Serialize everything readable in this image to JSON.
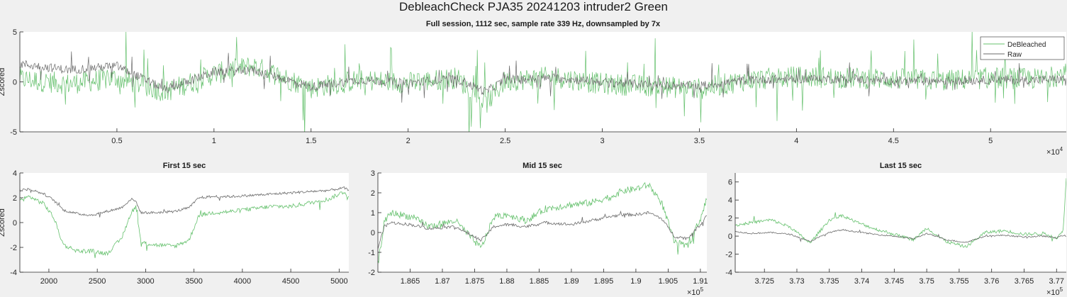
{
  "figure_title": "DebleachCheck PJA35 20241203  intruder2 Green",
  "colors": {
    "debleached": "#66c16e",
    "raw": "#6b6b6b",
    "axes_bg": "#ffffff",
    "figure_bg": "#f0f0f0"
  },
  "chart_data": [
    {
      "type": "line",
      "title": "Full session, 1112 sec, sample rate 339 Hz, downsampled by 7x",
      "ylabel": "Zscored",
      "xlabel": "",
      "xlim": [
        0,
        53900
      ],
      "ylim": [
        -5,
        5
      ],
      "x_ticks": [
        5000,
        10000,
        15000,
        20000,
        25000,
        30000,
        35000,
        40000,
        45000,
        50000
      ],
      "x_tick_labels": [
        "0.5",
        "1",
        "1.5",
        "2",
        "2.5",
        "3",
        "3.5",
        "4",
        "4.5",
        "5"
      ],
      "x_exponent": "×10",
      "x_exponent_power": "4",
      "y_ticks": [
        -5,
        0,
        5
      ],
      "y_tick_labels": [
        "-5",
        "0",
        "5"
      ],
      "grid": false,
      "legend": {
        "placement": "top-right",
        "entries": [
          "DeBleached",
          "Raw"
        ]
      },
      "series": [
        {
          "name": "DeBleached",
          "x": [
            0,
            2500,
            5000,
            7500,
            10000,
            12000,
            15000,
            17500,
            20000,
            22500,
            24000,
            25000,
            27500,
            30000,
            32500,
            35000,
            37500,
            40000,
            42500,
            45000,
            47500,
            50000,
            52500,
            53900
          ],
          "values": [
            0.3,
            -0.2,
            0.4,
            -1.0,
            0.8,
            1.6,
            -0.6,
            0.2,
            -0.1,
            0.4,
            -2.2,
            0.1,
            0.5,
            -0.2,
            -0.4,
            -0.7,
            0.2,
            0.5,
            0.4,
            0.3,
            0.1,
            0.4,
            0.3,
            0.8
          ]
        },
        {
          "name": "Raw",
          "x": [
            0,
            2500,
            5000,
            7500,
            10000,
            12000,
            15000,
            17500,
            20000,
            22500,
            24000,
            25000,
            27500,
            30000,
            32500,
            35000,
            37500,
            40000,
            42500,
            45000,
            47500,
            50000,
            52500,
            53900
          ],
          "values": [
            1.8,
            1.2,
            1.6,
            -0.8,
            1.0,
            1.2,
            -0.5,
            0.2,
            -0.1,
            0.3,
            -1.0,
            0.2,
            0.4,
            0.0,
            -0.3,
            -0.4,
            0.2,
            0.3,
            0.3,
            0.1,
            0.1,
            0.2,
            0.2,
            0.3
          ]
        }
      ]
    },
    {
      "type": "line",
      "title": "First 15 sec",
      "ylabel": "Zscored",
      "xlabel": "",
      "xlim": [
        1700,
        5100
      ],
      "ylim": [
        -4,
        4
      ],
      "x_ticks": [
        2000,
        2500,
        3000,
        3500,
        4000,
        4500,
        5000
      ],
      "x_tick_labels": [
        "2000",
        "2500",
        "3000",
        "3500",
        "4000",
        "4500",
        "5000"
      ],
      "y_ticks": [
        -4,
        -2,
        0,
        2,
        4
      ],
      "y_tick_labels": [
        "-4",
        "-2",
        "0",
        "2",
        "4"
      ],
      "grid": false,
      "series": [
        {
          "name": "DeBleached",
          "x": [
            1700,
            1800,
            1950,
            2050,
            2150,
            2300,
            2450,
            2600,
            2750,
            2850,
            2900,
            2950,
            3100,
            3300,
            3450,
            3550,
            3700,
            3900,
            4100,
            4300,
            4500,
            4700,
            4900,
            5050,
            5100
          ],
          "values": [
            1.8,
            2.1,
            1.5,
            0.4,
            -1.8,
            -2.3,
            -2.3,
            -2.5,
            -1.3,
            0.8,
            1.3,
            -1.6,
            -1.8,
            -1.9,
            -1.4,
            0.6,
            0.8,
            0.9,
            1.1,
            1.3,
            1.3,
            1.6,
            1.9,
            2.5,
            2.0
          ]
        },
        {
          "name": "Raw",
          "x": [
            1700,
            1800,
            1950,
            2050,
            2150,
            2300,
            2450,
            2600,
            2750,
            2850,
            2900,
            2950,
            3100,
            3300,
            3450,
            3550,
            3700,
            3900,
            4100,
            4300,
            4500,
            4700,
            4900,
            5050,
            5100
          ],
          "values": [
            2.6,
            2.7,
            2.3,
            1.8,
            1.0,
            0.7,
            0.6,
            0.9,
            1.2,
            1.9,
            1.7,
            0.8,
            0.8,
            0.9,
            1.2,
            2.0,
            2.1,
            2.1,
            2.2,
            2.3,
            2.4,
            2.5,
            2.6,
            2.8,
            2.6
          ]
        }
      ]
    },
    {
      "type": "line",
      "title": "Mid 15 sec",
      "ylabel": "",
      "xlabel": "",
      "xlim": [
        186000,
        191100
      ],
      "ylim": [
        -2,
        3
      ],
      "x_ticks": [
        186500,
        187000,
        187500,
        188000,
        188500,
        189000,
        189500,
        190000,
        190500,
        191000
      ],
      "x_tick_labels": [
        "1.865",
        "1.87",
        "1.875",
        "1.88",
        "1.885",
        "1.89",
        "1.895",
        "1.9",
        "1.905",
        "1.91"
      ],
      "x_exponent": "×10",
      "x_exponent_power": "5",
      "y_ticks": [
        -2,
        -1,
        0,
        1,
        2,
        3
      ],
      "y_tick_labels": [
        "-2",
        "-1",
        "0",
        "1",
        "2",
        "3"
      ],
      "grid": false,
      "series": [
        {
          "name": "DeBleached",
          "x": [
            186000,
            186100,
            186200,
            186500,
            186800,
            187200,
            187600,
            187800,
            188000,
            188300,
            188600,
            189000,
            189300,
            189600,
            189800,
            190000,
            190200,
            190400,
            190600,
            190800,
            191000,
            191100
          ],
          "values": [
            -1.6,
            0.5,
            1.0,
            0.8,
            0.3,
            0.6,
            -0.8,
            0.8,
            0.9,
            0.6,
            1.2,
            1.4,
            1.5,
            1.8,
            2.1,
            2.2,
            2.4,
            1.5,
            -0.5,
            -0.7,
            0.7,
            1.7
          ]
        },
        {
          "name": "Raw",
          "x": [
            186000,
            186100,
            186200,
            186500,
            186800,
            187200,
            187600,
            187800,
            188000,
            188300,
            188600,
            189000,
            189300,
            189600,
            189800,
            190000,
            190200,
            190400,
            190600,
            190800,
            191000,
            191100
          ],
          "values": [
            -0.8,
            0.3,
            0.5,
            0.4,
            0.2,
            0.3,
            -0.4,
            0.3,
            0.4,
            0.3,
            0.5,
            0.4,
            0.6,
            0.8,
            0.9,
            0.9,
            1.0,
            0.7,
            -0.2,
            -0.3,
            0.4,
            0.9
          ]
        }
      ]
    },
    {
      "type": "line",
      "title": "Last 15 sec",
      "ylabel": "",
      "xlabel": "",
      "xlim": [
        372050,
        377150
      ],
      "ylim": [
        -4,
        7
      ],
      "x_ticks": [
        372500,
        373000,
        373500,
        374000,
        374500,
        375000,
        375500,
        376000,
        376500,
        377000
      ],
      "x_tick_labels": [
        "3.725",
        "3.73",
        "3.735",
        "3.74",
        "3.745",
        "3.75",
        "3.755",
        "3.76",
        "3.765",
        "3.77"
      ],
      "x_exponent": "×10",
      "x_exponent_power": "5",
      "y_ticks": [
        -4,
        -2,
        0,
        2,
        4,
        6
      ],
      "y_tick_labels": [
        "-4",
        "-2",
        "0",
        "2",
        "4",
        "6"
      ],
      "grid": false,
      "series": [
        {
          "name": "DeBleached",
          "x": [
            372050,
            372300,
            372600,
            372900,
            373200,
            373500,
            373700,
            373900,
            374200,
            374500,
            374800,
            375000,
            375300,
            375600,
            375900,
            376200,
            376500,
            376800,
            377000,
            377100,
            377150
          ],
          "values": [
            1.2,
            1.5,
            1.8,
            1.0,
            -0.8,
            1.8,
            2.3,
            1.6,
            0.8,
            0.2,
            -0.4,
            0.9,
            -0.6,
            -1.2,
            0.4,
            0.6,
            0.2,
            0.3,
            -0.2,
            0.5,
            6.5
          ]
        },
        {
          "name": "Raw",
          "x": [
            372050,
            372300,
            372600,
            372900,
            373200,
            373500,
            373700,
            373900,
            374200,
            374500,
            374800,
            375000,
            375300,
            375600,
            375900,
            376200,
            376500,
            376800,
            377000,
            377100,
            377150
          ],
          "values": [
            0.5,
            0.3,
            0.4,
            0.2,
            -0.6,
            0.4,
            0.7,
            0.5,
            0.2,
            0.0,
            -0.3,
            0.3,
            -0.4,
            -0.7,
            0.0,
            0.1,
            -0.1,
            0.0,
            -0.2,
            0.1,
            0.0
          ]
        }
      ]
    }
  ]
}
